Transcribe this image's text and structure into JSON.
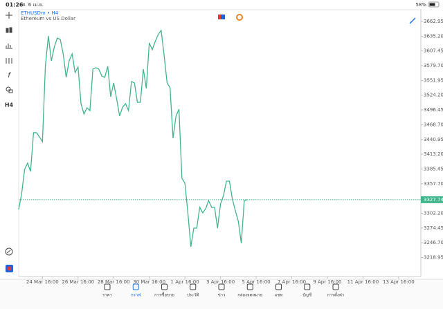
{
  "status_bar": {
    "time": "01:26",
    "date": "ส. 6 เม.ย.",
    "battery": "58%"
  },
  "toolbar": {
    "timeframe": "H4"
  },
  "chart_data": {
    "type": "line",
    "title": "ETHUSDm • H4",
    "subtitle": "Ethereum vs US Dollar",
    "color": "#3fb68b",
    "x": [
      0,
      1,
      2,
      3,
      4,
      5,
      6,
      7,
      8,
      9,
      10,
      11,
      12,
      13,
      14,
      15,
      16,
      17,
      18,
      19,
      20,
      21,
      22,
      23,
      24,
      25,
      26,
      27,
      28,
      29,
      30,
      31,
      32,
      33,
      34,
      35,
      36,
      37,
      38,
      39,
      40,
      41,
      42,
      43,
      44,
      45,
      46,
      47,
      48,
      49,
      50,
      51,
      52,
      53,
      54,
      55,
      56,
      57,
      58,
      59,
      60,
      61,
      62,
      63,
      64,
      65,
      66,
      67,
      68,
      69,
      70,
      71,
      72,
      73,
      74,
      75,
      76,
      77
    ],
    "values": [
      3309.4,
      3339.3,
      3384.8,
      3396.5,
      3380.9,
      3453.7,
      3453.7,
      3445.9,
      3436.8,
      3579.8,
      3635.6,
      3588.8,
      3614.8,
      3631.7,
      3629.1,
      3601.9,
      3557.7,
      3588.8,
      3601.9,
      3566.8,
      3577.2,
      3508.3,
      3488.8,
      3500.5,
      3495.3,
      3573.3,
      3575.9,
      3573.3,
      3560.3,
      3557.7,
      3578.5,
      3521.3,
      3547.3,
      3517.4,
      3484.9,
      3501.8,
      3508.3,
      3495.3,
      3549.9,
      3547.3,
      3510.9,
      3510.9,
      3573.3,
      3536.9,
      3622.6,
      3609.6,
      3625.2,
      3638.2,
      3646.0,
      3599.3,
      3547.3,
      3538.2,
      3443.3,
      3484.9,
      3497.9,
      3367.9,
      3358.8,
      3302.9,
      3239.2,
      3274.3,
      3274.3,
      3313.3,
      3302.9,
      3310.7,
      3326.3,
      3313.3,
      3313.3,
      3274.3,
      3319.8,
      3335.4,
      3362.7,
      3362.7,
      3328.9,
      3306.8,
      3287.3,
      3245.7,
      3326.3,
      3327.74
    ],
    "current_price": 3327.74,
    "xlim": [
      0,
      135.5
    ],
    "xticks": [
      {
        "value": 8,
        "label": "24 Mar 16:00"
      },
      {
        "value": 20,
        "label": "26 Mar 16:00"
      },
      {
        "value": 32,
        "label": "28 Mar 16:00"
      },
      {
        "value": 44,
        "label": "30 Mar 16:00"
      },
      {
        "value": 56,
        "label": "1 Apr 16:00"
      },
      {
        "value": 68,
        "label": "3 Apr 16:00"
      },
      {
        "value": 80,
        "label": "5 Apr 16:00"
      },
      {
        "value": 92,
        "label": "7 Apr 16:00"
      },
      {
        "value": 104,
        "label": "9 Apr 16:00"
      },
      {
        "value": 116,
        "label": "11 Apr 16:00"
      },
      {
        "value": 128,
        "label": "13 Apr 16:00"
      }
    ],
    "ylim": [
      3183.3,
      3685.0
    ],
    "yticks": [
      3662.95,
      {
        "value": 3635.2,
        "label": "3635.20"
      },
      3607.45,
      {
        "value": 3579.7,
        "label": "3579.70"
      },
      3551.95,
      {
        "value": 3524.2,
        "label": "3524.20"
      },
      3496.45,
      {
        "value": 3468.7,
        "label": "3468.70"
      },
      3440.95,
      {
        "value": 3413.2,
        "label": "3413.20"
      },
      3385.45,
      {
        "value": 3357.7,
        "label": "3357.70"
      },
      {
        "value": 3302.2,
        "label": "3302.20"
      },
      3274.45,
      {
        "value": 3246.7,
        "label": "3246.70"
      },
      3218.95
    ]
  },
  "nav": {
    "active": 1,
    "items": [
      "ราคา",
      "กราฟ",
      "การซื้อขาย",
      "ประวัติ",
      "ข่าว",
      "กล่องจดหมาย",
      "แชท",
      "บัญชี",
      "การตั้งค่า"
    ]
  }
}
